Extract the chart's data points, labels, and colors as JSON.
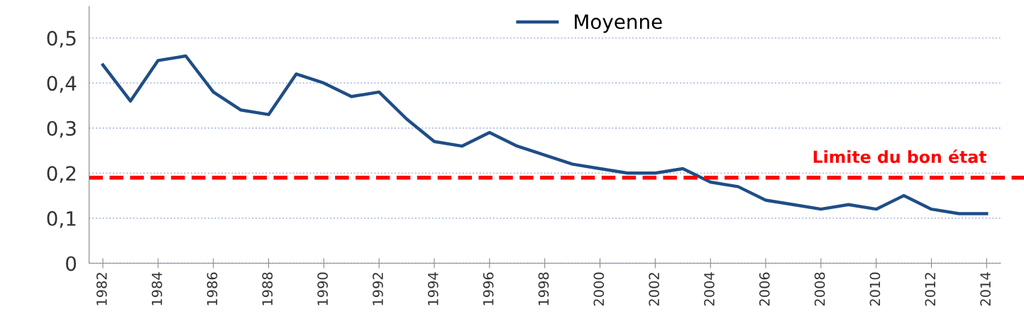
{
  "chart_data": {
    "type": "line",
    "x": [
      1982,
      1983,
      1984,
      1985,
      1986,
      1987,
      1988,
      1989,
      1990,
      1991,
      1992,
      1993,
      1994,
      1995,
      1996,
      1997,
      1998,
      1999,
      2000,
      2001,
      2002,
      2003,
      2004,
      2005,
      2006,
      2007,
      2008,
      2009,
      2010,
      2011,
      2012,
      2013,
      2014
    ],
    "series": [
      {
        "name": "Moyenne",
        "color": "#1f4e86",
        "values": [
          0.44,
          0.36,
          0.45,
          0.46,
          0.38,
          0.34,
          0.33,
          0.42,
          0.4,
          0.37,
          0.38,
          0.32,
          0.27,
          0.26,
          0.29,
          0.26,
          0.24,
          0.22,
          0.21,
          0.2,
          0.2,
          0.21,
          0.18,
          0.17,
          0.14,
          0.13,
          0.12,
          0.13,
          0.12,
          0.15,
          0.12,
          0.11,
          0.11
        ]
      }
    ],
    "xlim": [
      1981.5,
      2014.5
    ],
    "xticks": [
      1982,
      1984,
      1986,
      1988,
      1990,
      1992,
      1994,
      1996,
      1998,
      2000,
      2002,
      2004,
      2006,
      2008,
      2010,
      2012,
      2014
    ],
    "ylim": [
      0,
      0.57
    ],
    "yticks": [
      0,
      {
        "value": 0.1,
        "label": "0,1"
      },
      {
        "value": 0.2,
        "label": "0,2"
      },
      {
        "value": 0.3,
        "label": "0,3"
      },
      {
        "value": 0.4,
        "label": "0,4"
      },
      {
        "value": 0.5,
        "label": "0,5"
      }
    ],
    "ref_lines": [
      {
        "axis": "y",
        "value": 0.19,
        "label": "Limite du bon état",
        "color": "#ff0000",
        "line_style": "dashed"
      }
    ],
    "grid": "y",
    "legend": "top",
    "marker": "none",
    "line_style": "solid"
  }
}
